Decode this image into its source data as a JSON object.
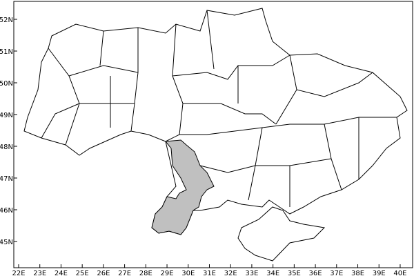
{
  "map": {
    "highlight_region_color": "#c0c0c0",
    "border_color": "#000000",
    "background_color": "#ffffff",
    "lon_labels": [
      "22E",
      "23E",
      "24E",
      "25E",
      "26E",
      "27E",
      "28E",
      "29E",
      "30E",
      "31E",
      "32E",
      "33E",
      "34E",
      "35E",
      "36E",
      "37E",
      "38E",
      "39E",
      "40E"
    ],
    "lat_labels": [
      "45N",
      "46N",
      "47N",
      "48N",
      "49N",
      "50N",
      "51N",
      "52N"
    ],
    "lon_values": [
      22,
      23,
      24,
      25,
      26,
      27,
      28,
      29,
      30,
      31,
      32,
      33,
      34,
      35,
      36,
      37,
      38,
      39,
      40
    ],
    "lat_values": [
      45,
      46,
      47,
      48,
      49,
      50,
      51,
      52
    ]
  }
}
